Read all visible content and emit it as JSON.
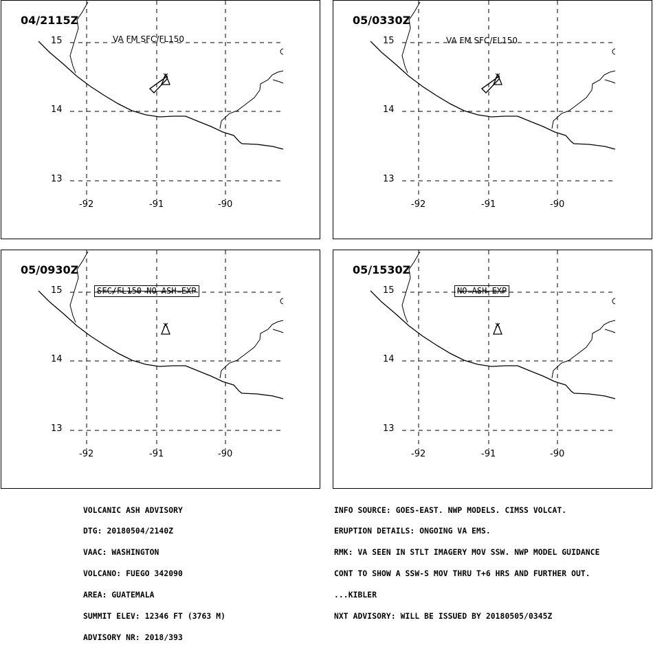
{
  "panels": [
    {
      "time": "04/2115Z",
      "note": "VA FM SFC/FL150",
      "note_style": "plain",
      "ash_polygon": true
    },
    {
      "time": "05/0330Z",
      "note": "VA FM SFC/FL150",
      "note_style": "plain",
      "ash_polygon": true
    },
    {
      "time": "05/0930Z",
      "note": "SFC/FL150 NO ASH EXP",
      "note_style": "box",
      "ash_polygon": false
    },
    {
      "time": "05/1530Z",
      "note": "NO ASH EXP",
      "note_style": "box",
      "ash_polygon": false
    }
  ],
  "axes": {
    "lat_labels": [
      "15",
      "14",
      "13"
    ],
    "lon_labels": [
      "-92",
      "-91",
      "-90"
    ]
  },
  "advisory_left": {
    "lines": [
      "VOLCANIC ASH ADVISORY",
      "DTG: 20180504/2140Z",
      "VAAC: WASHINGTON",
      "VOLCANO: FUEGO 342090",
      "AREA: GUATEMALA",
      "SUMMIT ELEV: 12346 FT (3763 M)",
      "ADVISORY NR: 2018/393"
    ]
  },
  "advisory_right": {
    "lines": [
      "INFO SOURCE: GOES-EAST. NWP MODELS. CIMSS VOLCAT.",
      "ERUPTION DETAILS: ONGOING VA EMS.",
      "RMK: VA SEEN IN STLT IMAGERY MOV SSW. NWP MODEL GUIDANCE",
      "CONT TO SHOW A SSW-S MOV THRU T+6 HRS AND FURTHER OUT.",
      "...KIBLER",
      "NXT ADVISORY: WILL BE ISSUED BY 20180505/0345Z"
    ]
  },
  "colors": {
    "line": "#000000",
    "background": "#ffffff"
  }
}
